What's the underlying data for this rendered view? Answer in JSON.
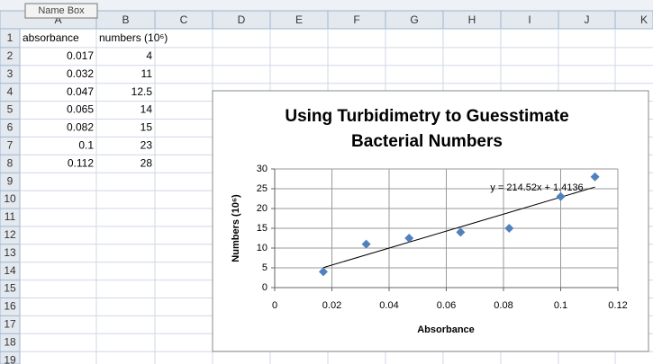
{
  "name_box_tooltip": "Name Box",
  "column_headers": [
    "A",
    "B",
    "C",
    "D",
    "E",
    "F",
    "G",
    "H",
    "I",
    "J",
    "K"
  ],
  "row_numbers": [
    1,
    2,
    3,
    4,
    5,
    6,
    7,
    8,
    9,
    10,
    11,
    12,
    13,
    14,
    15,
    16,
    17,
    18,
    19
  ],
  "cells": [
    [
      "absorbance",
      "numbers (10⁶)"
    ],
    [
      0.017,
      4
    ],
    [
      0.032,
      11
    ],
    [
      0.047,
      12.5
    ],
    [
      0.065,
      14
    ],
    [
      0.082,
      15
    ],
    [
      0.1,
      23
    ],
    [
      0.112,
      28
    ]
  ],
  "chart_data": {
    "type": "scatter",
    "title": "Using Turbidimetry to Guesstimate Bacterial Numbers",
    "x_label": "Absorbance",
    "y_label": "Numbers (10⁶)",
    "x": [
      0.017,
      0.032,
      0.047,
      0.065,
      0.082,
      0.1,
      0.112
    ],
    "values": [
      4,
      11,
      12.5,
      14,
      15,
      23,
      28
    ],
    "color": "#4f81bd",
    "xlim": [
      0,
      0.12
    ],
    "xticks": [
      0,
      0.02,
      0.04,
      0.06,
      0.08,
      0.1,
      0.12
    ],
    "ylim": [
      0,
      30
    ],
    "yticks": [
      0,
      5,
      10,
      15,
      20,
      25,
      30
    ],
    "grid": true,
    "trendline": {
      "slope": 214.52,
      "intercept": 1.4136,
      "label": "y = 214.52x + 1.4136"
    }
  }
}
